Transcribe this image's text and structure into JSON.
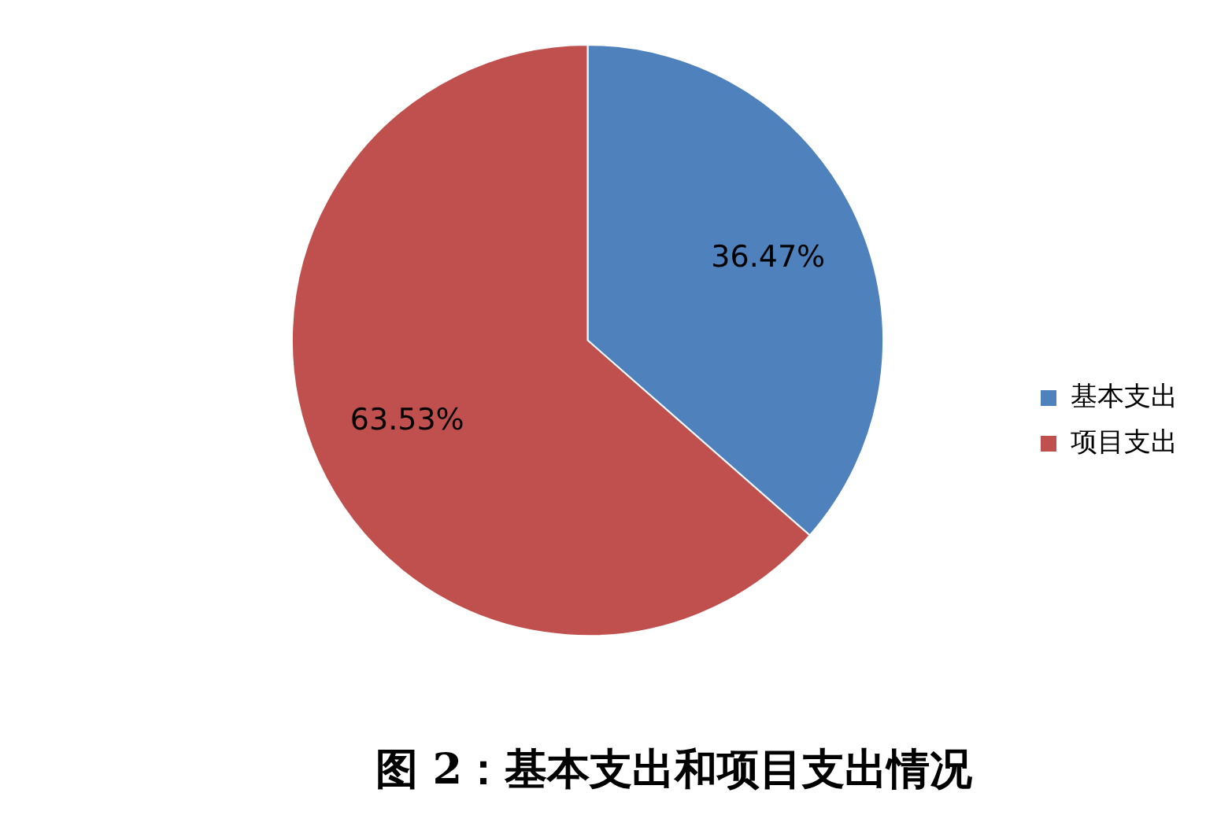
{
  "chart_data": {
    "type": "pie",
    "title": "图 2：基本支出和项目支出情况",
    "categories": [
      "基本支出",
      "项目支出"
    ],
    "values": [
      36.47,
      63.53
    ],
    "colors": [
      "#4f81bd",
      "#c0504d"
    ],
    "value_labels": [
      "36.47%",
      "63.53%"
    ],
    "legend": "right"
  }
}
